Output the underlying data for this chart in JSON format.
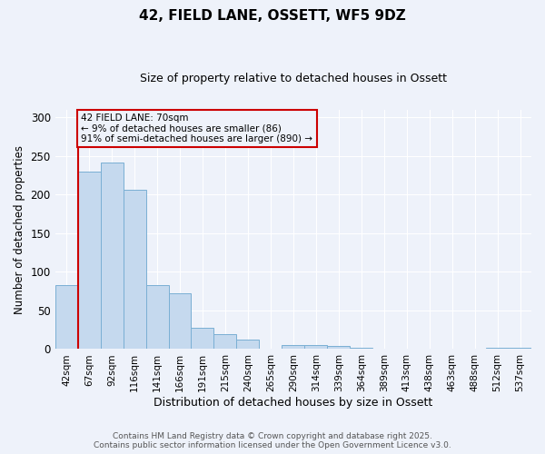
{
  "title1": "42, FIELD LANE, OSSETT, WF5 9DZ",
  "title2": "Size of property relative to detached houses in Ossett",
  "xlabel": "Distribution of detached houses by size in Ossett",
  "ylabel": "Number of detached properties",
  "categories": [
    "42sqm",
    "67sqm",
    "92sqm",
    "116sqm",
    "141sqm",
    "166sqm",
    "191sqm",
    "215sqm",
    "240sqm",
    "265sqm",
    "290sqm",
    "314sqm",
    "339sqm",
    "364sqm",
    "389sqm",
    "413sqm",
    "438sqm",
    "463sqm",
    "488sqm",
    "512sqm",
    "537sqm"
  ],
  "values": [
    83,
    230,
    241,
    206,
    83,
    72,
    28,
    19,
    12,
    0,
    5,
    5,
    4,
    2,
    0,
    0,
    0,
    0,
    0,
    2,
    2
  ],
  "bar_color": "#c5d9ee",
  "bar_edge_color": "#7aafd4",
  "property_line_index": 1,
  "property_line_color": "#cc0000",
  "annotation_text": "42 FIELD LANE: 70sqm\n← 9% of detached houses are smaller (86)\n91% of semi-detached houses are larger (890) →",
  "annotation_box_color": "#cc0000",
  "background_color": "#eef2fa",
  "footer_text": "Contains HM Land Registry data © Crown copyright and database right 2025.\nContains public sector information licensed under the Open Government Licence v3.0.",
  "ylim": [
    0,
    310
  ],
  "yticks": [
    0,
    50,
    100,
    150,
    200,
    250,
    300
  ]
}
